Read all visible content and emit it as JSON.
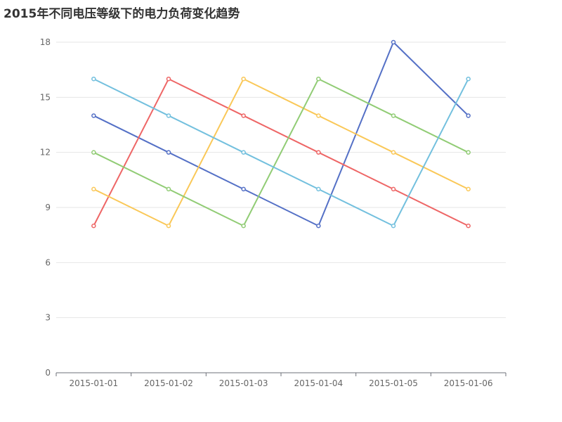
{
  "chart_data": {
    "type": "line",
    "title": "2015年不同电压等级下的电力负荷变化趋势",
    "xlabel": "",
    "ylabel": "",
    "categories": [
      "2015-01-01",
      "2015-01-02",
      "2015-01-03",
      "2015-01-04",
      "2015-01-05",
      "2015-01-06"
    ],
    "ylim": [
      0,
      18
    ],
    "yticks": [
      0,
      3,
      6,
      9,
      12,
      15,
      18
    ],
    "grid": true,
    "legend": "none",
    "series": [
      {
        "color": "#5470c6",
        "values": [
          14,
          12,
          10,
          8,
          18,
          14
        ]
      },
      {
        "color": "#ee6666",
        "values": [
          8,
          16,
          14,
          12,
          10,
          8
        ]
      },
      {
        "color": "#fac858",
        "values": [
          10,
          8,
          16,
          14,
          12,
          10
        ]
      },
      {
        "color": "#91cc75",
        "values": [
          12,
          10,
          8,
          16,
          14,
          12
        ]
      },
      {
        "color": "#73c0de",
        "values": [
          16,
          14,
          12,
          10,
          8,
          16
        ]
      }
    ]
  }
}
